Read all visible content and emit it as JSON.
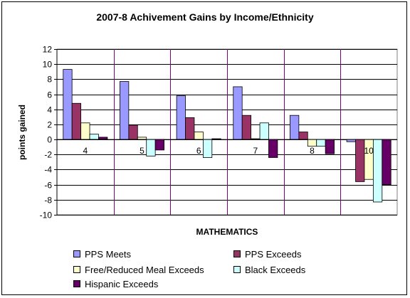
{
  "chart_data": {
    "type": "bar",
    "title": "2007-8 Achivement Gains by Income/Ethnicity",
    "xlabel": "MATHEMATICS",
    "ylabel": "points gained",
    "categories": [
      "4",
      "5",
      "6",
      "7",
      "8",
      "10"
    ],
    "ylim": [
      -10,
      12
    ],
    "ytick_step": 2,
    "grid": true,
    "legend_position": "bottom",
    "series": [
      {
        "name": "PPS Meets",
        "color": "#9999FF",
        "values": [
          9.3,
          7.7,
          5.8,
          7.0,
          3.2,
          -0.3
        ]
      },
      {
        "name": "PPS Exceeds",
        "color": "#993366",
        "values": [
          4.8,
          1.9,
          2.9,
          3.2,
          1.0,
          -5.6
        ]
      },
      {
        "name": "Free/Reduced Meal Exceeds",
        "color": "#FFFFCC",
        "values": [
          2.2,
          0.3,
          1.0,
          0.1,
          -0.9,
          -5.3
        ]
      },
      {
        "name": "Black Exceeds",
        "color": "#CCFFFF",
        "values": [
          0.7,
          -2.2,
          -2.4,
          2.2,
          -0.9,
          -8.3
        ]
      },
      {
        "name": "Hispanic Exceeds",
        "color": "#660066",
        "values": [
          0.3,
          -1.4,
          0.1,
          -2.4,
          -1.9,
          -6.0
        ]
      }
    ]
  }
}
